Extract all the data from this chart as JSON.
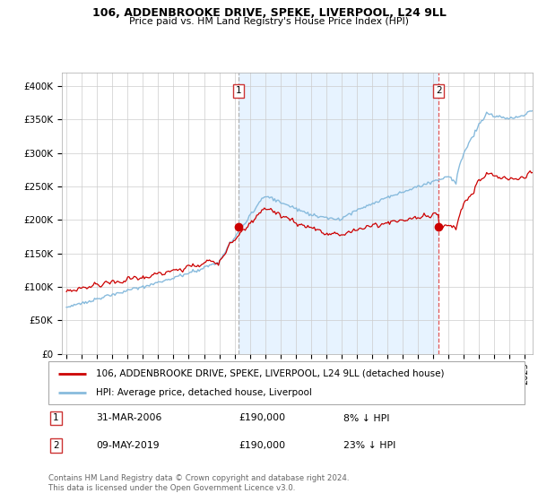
{
  "title": "106, ADDENBROOKE DRIVE, SPEKE, LIVERPOOL, L24 9LL",
  "subtitle": "Price paid vs. HM Land Registry's House Price Index (HPI)",
  "ylim": [
    0,
    420000
  ],
  "yticks": [
    0,
    50000,
    100000,
    150000,
    200000,
    250000,
    300000,
    350000,
    400000
  ],
  "ytick_labels": [
    "£0",
    "£50K",
    "£100K",
    "£150K",
    "£200K",
    "£250K",
    "£300K",
    "£350K",
    "£400K"
  ],
  "hpi_color": "#88bbdd",
  "hpi_fill_color": "#ddeeff",
  "price_color": "#cc0000",
  "vline1_color": "#aaaaaa",
  "vline2_color": "#dd4444",
  "background_color": "#ffffff",
  "grid_color": "#cccccc",
  "legend_label_price": "106, ADDENBROOKE DRIVE, SPEKE, LIVERPOOL, L24 9LL (detached house)",
  "legend_label_hpi": "HPI: Average price, detached house, Liverpool",
  "annotation1_date": "31-MAR-2006",
  "annotation1_price": "£190,000",
  "annotation1_pct": "8% ↓ HPI",
  "annotation2_date": "09-MAY-2019",
  "annotation2_price": "£190,000",
  "annotation2_pct": "23% ↓ HPI",
  "footnote": "Contains HM Land Registry data © Crown copyright and database right 2024.\nThis data is licensed under the Open Government Licence v3.0.",
  "sale1_year": 2006.25,
  "sale1_value": 190000,
  "sale2_year": 2019.36,
  "sale2_value": 190000
}
